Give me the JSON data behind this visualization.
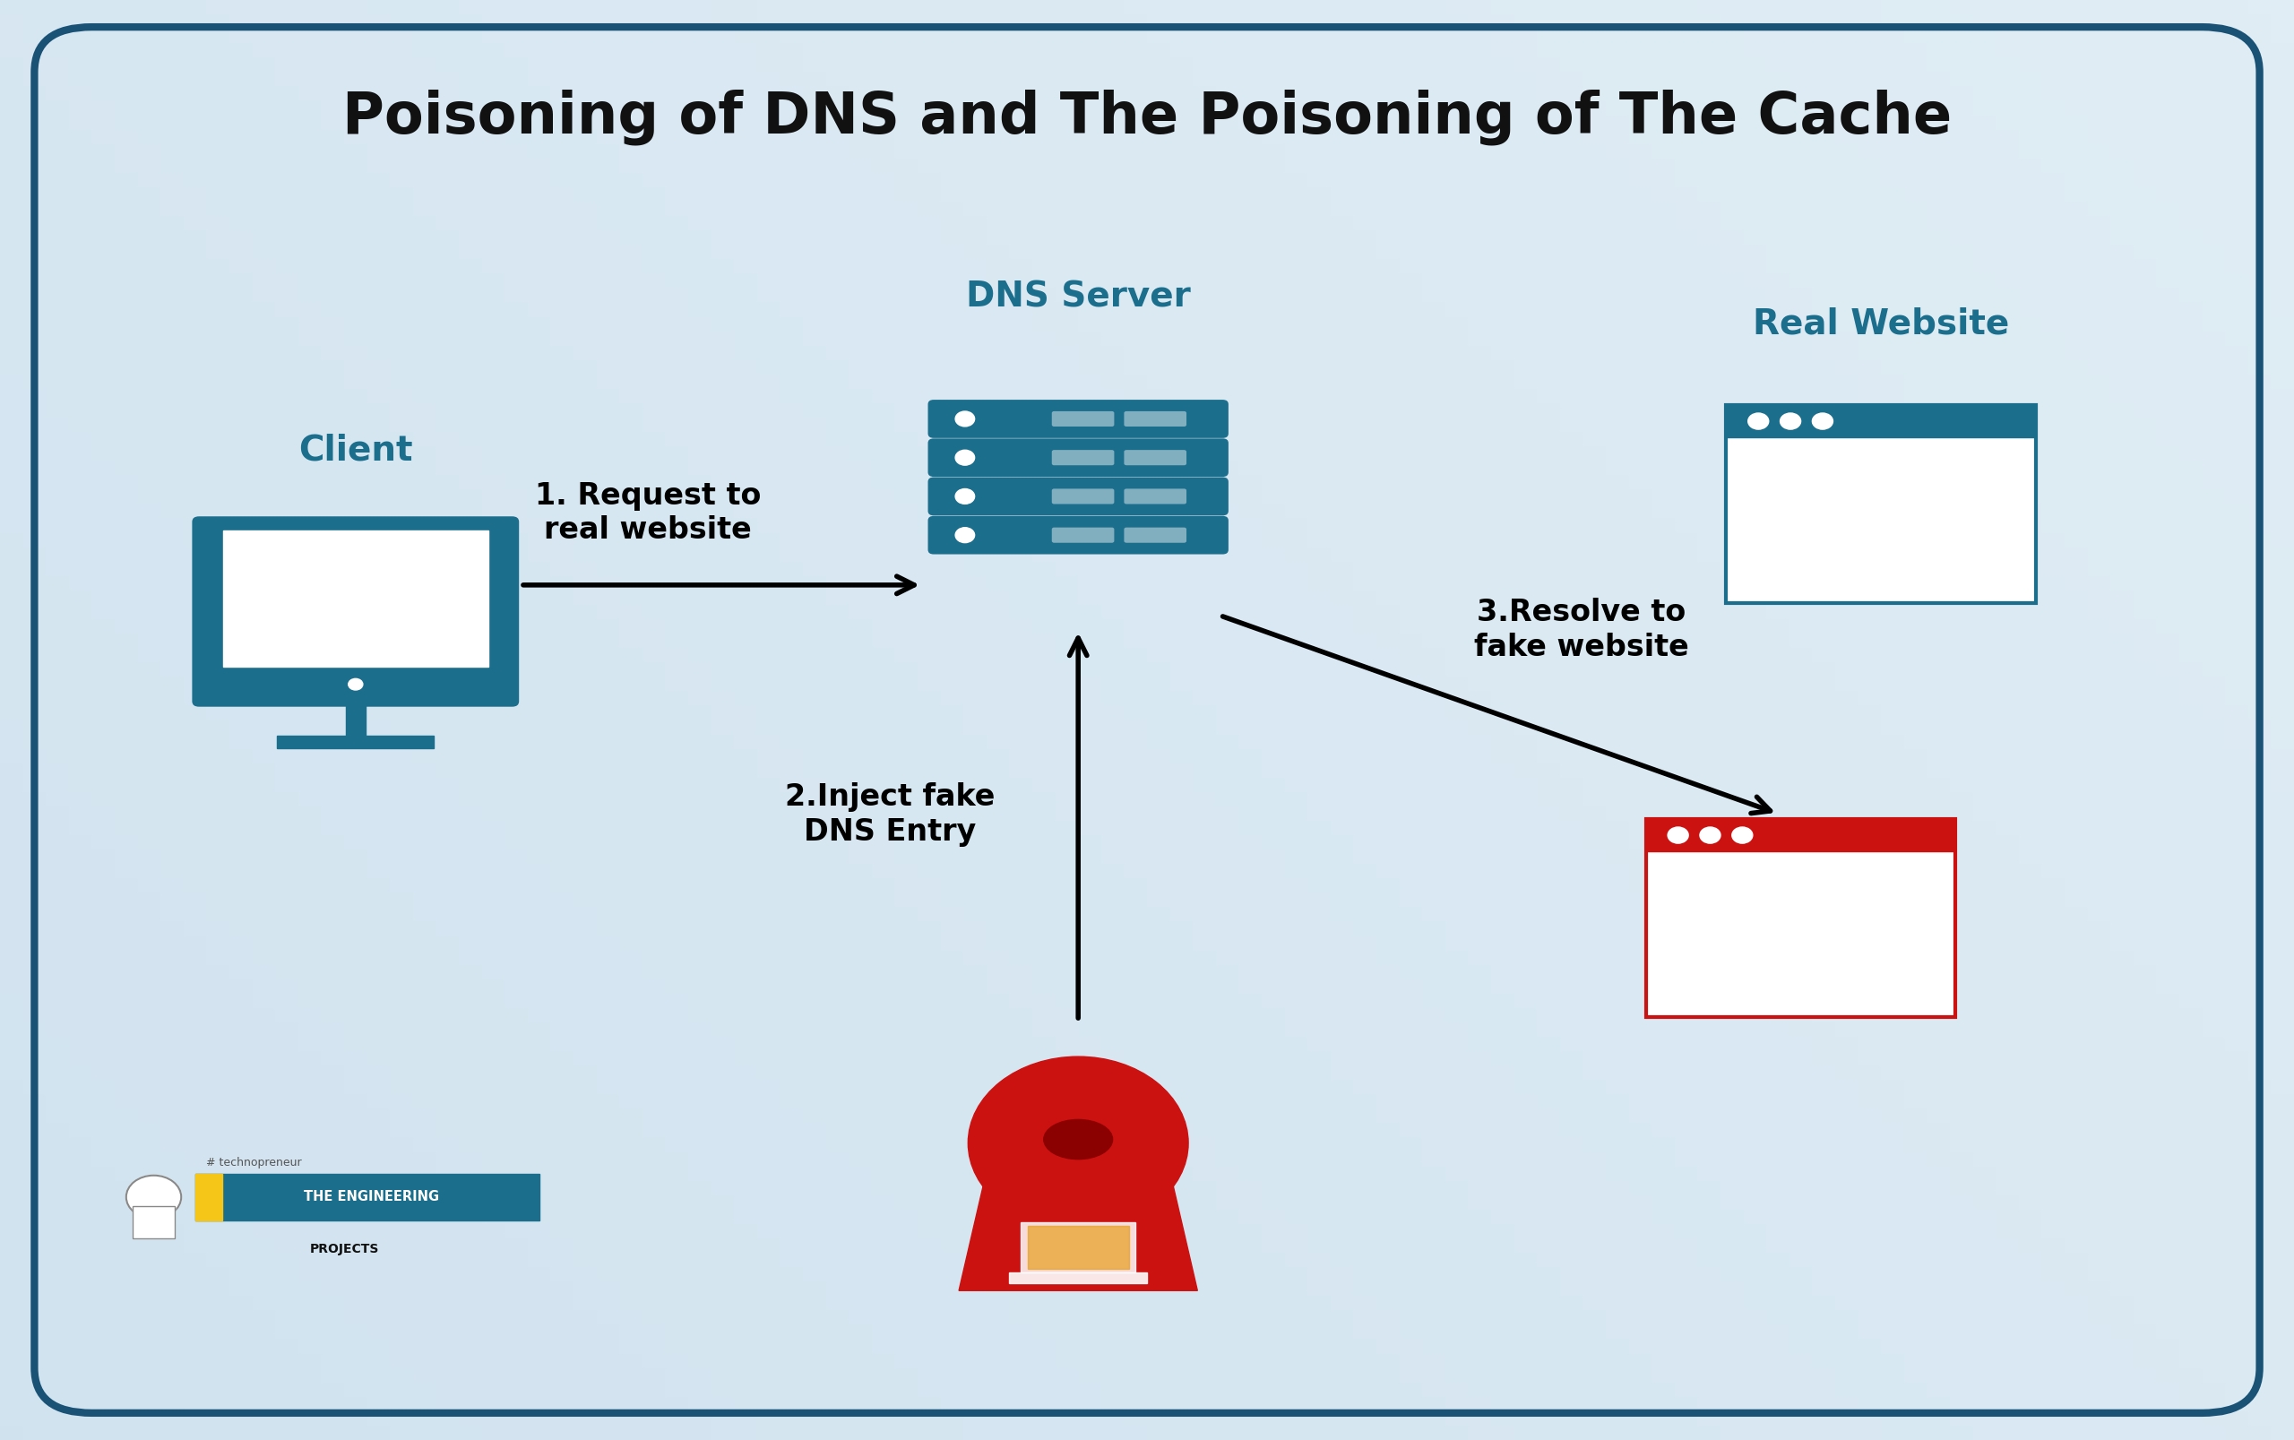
{
  "title": "Poisoning of DNS and The Poisoning of The Cache",
  "title_fontsize": 46,
  "title_color": "#111111",
  "bg_color_top": "#e8f0f5",
  "bg_color": "#dde8f0",
  "border_color": "#1a5276",
  "teal_color": "#1b6e8c",
  "red_color": "#cc1111",
  "black_color": "#111111",
  "label_client": "Client",
  "label_dns": "DNS Server",
  "label_real": "Real Website",
  "label_arrow1": "1. Request to\nreal website",
  "label_arrow2": "2.Inject fake\nDNS Entry",
  "label_arrow3": "3.Resolve to\nfake website",
  "label_fontsize": 24,
  "label_title_fontsize": 28
}
